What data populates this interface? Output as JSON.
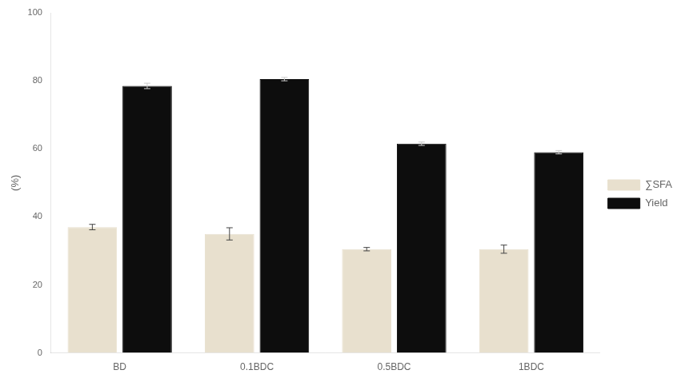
{
  "chart_data": {
    "type": "bar",
    "categories": [
      "BD",
      "0.1BDC",
      "0.5BDC",
      "1BDC"
    ],
    "series": [
      {
        "name": "∑SFA",
        "color": "#e8e0ce",
        "values": [
          37.0,
          35.0,
          30.5,
          30.5
        ],
        "errors": [
          0.8,
          1.8,
          0.5,
          1.2
        ]
      },
      {
        "name": "Yield",
        "color": "#0d0d0d",
        "values": [
          78.5,
          80.5,
          61.5,
          59.0
        ],
        "errors": [
          0.8,
          0.5,
          0.5,
          0.5
        ]
      }
    ],
    "ylabel": "(%)",
    "ylim": [
      0,
      100
    ],
    "yticks": [
      0,
      20,
      40,
      60,
      80,
      100
    ],
    "grid": false,
    "legend": "right"
  }
}
